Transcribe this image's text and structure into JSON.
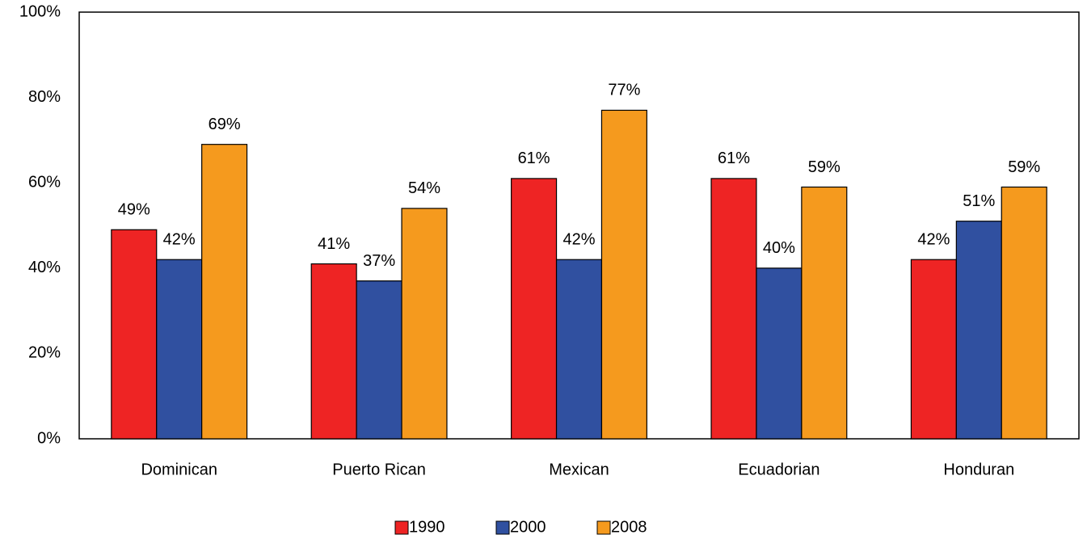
{
  "chart_data": {
    "type": "bar",
    "categories": [
      "Dominican",
      "Puerto Rican",
      "Mexican",
      "Ecuadorian",
      "Honduran"
    ],
    "series": [
      {
        "name": "1990",
        "color": "#ee2424",
        "values": [
          49,
          41,
          61,
          61,
          42
        ],
        "value_labels": [
          "49%",
          "41%",
          "61%",
          "61%",
          "42%"
        ]
      },
      {
        "name": "2000",
        "color": "#3050a0",
        "values": [
          42,
          37,
          42,
          40,
          51
        ],
        "value_labels": [
          "42%",
          "37%",
          "42%",
          "40%",
          "51%"
        ]
      },
      {
        "name": "2008",
        "color": "#f59a1e",
        "values": [
          69,
          54,
          77,
          59,
          59
        ],
        "value_labels": [
          "69%",
          "54%",
          "77%",
          "59%",
          "59%"
        ]
      }
    ],
    "ylim": [
      0,
      100
    ],
    "yticks": [
      {
        "value": 0,
        "label": "0%"
      },
      {
        "value": 20,
        "label": "20%"
      },
      {
        "value": 40,
        "label": "40%"
      },
      {
        "value": 60,
        "label": "60%"
      },
      {
        "value": 80,
        "label": "80%"
      },
      {
        "value": 100,
        "label": "100%"
      }
    ],
    "grid": false,
    "legend": "bottom"
  }
}
